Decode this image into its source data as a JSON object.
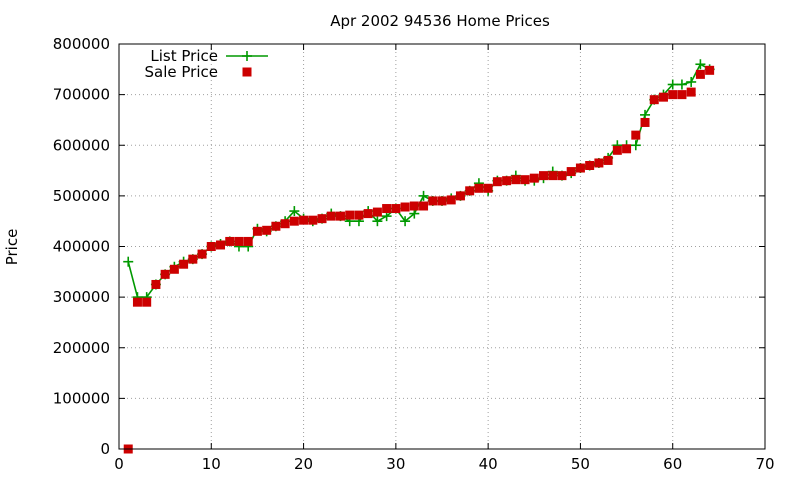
{
  "chart_data": {
    "type": "line",
    "title": "Apr 2002 94536 Home Prices",
    "xlabel": "",
    "ylabel": "Price",
    "xlim": [
      0,
      70
    ],
    "ylim": [
      0,
      800000
    ],
    "xticks": [
      "0",
      "10",
      "20",
      "30",
      "40",
      "50",
      "60",
      "70"
    ],
    "yticks": [
      "0",
      "100000",
      "200000",
      "300000",
      "400000",
      "500000",
      "600000",
      "700000",
      "800000"
    ],
    "grid": true,
    "legend_position": "top-left",
    "series": [
      {
        "name": "List Price",
        "style": "linespoints",
        "marker": "plus",
        "color": "#009900",
        "x": [
          1,
          2,
          3,
          4,
          5,
          6,
          7,
          8,
          9,
          10,
          11,
          12,
          13,
          14,
          15,
          16,
          17,
          18,
          19,
          20,
          21,
          22,
          23,
          24,
          25,
          26,
          27,
          28,
          29,
          30,
          31,
          32,
          33,
          34,
          35,
          36,
          37,
          38,
          39,
          40,
          41,
          42,
          43,
          44,
          45,
          46,
          47,
          48,
          49,
          50,
          51,
          52,
          53,
          54,
          55,
          56,
          57,
          58,
          59,
          60,
          61,
          62,
          63,
          64
        ],
        "y": [
          370000,
          300000,
          300000,
          325000,
          345000,
          360000,
          370000,
          375000,
          385000,
          400000,
          405000,
          410000,
          400000,
          400000,
          435000,
          430000,
          440000,
          450000,
          470000,
          455000,
          450000,
          455000,
          465000,
          460000,
          450000,
          450000,
          470000,
          450000,
          460000,
          475000,
          450000,
          465000,
          500000,
          490000,
          490000,
          495000,
          500000,
          510000,
          525000,
          510000,
          530000,
          530000,
          540000,
          530000,
          530000,
          535000,
          548000,
          540000,
          545000,
          555000,
          560000,
          565000,
          575000,
          600000,
          600000,
          600000,
          660000,
          690000,
          700000,
          720000,
          720000,
          725000,
          760000,
          750000
        ]
      },
      {
        "name": "Sale Price",
        "style": "points",
        "marker": "square",
        "color": "#cc0000",
        "x": [
          1,
          2,
          3,
          4,
          5,
          6,
          7,
          8,
          9,
          10,
          11,
          12,
          13,
          14,
          15,
          16,
          17,
          18,
          19,
          20,
          21,
          22,
          23,
          24,
          25,
          26,
          27,
          28,
          29,
          30,
          31,
          32,
          33,
          34,
          35,
          36,
          37,
          38,
          39,
          40,
          41,
          42,
          43,
          44,
          45,
          46,
          47,
          48,
          49,
          50,
          51,
          52,
          53,
          54,
          55,
          56,
          57,
          58,
          59,
          60,
          61,
          62,
          63,
          64
        ],
        "y": [
          0,
          290000,
          290000,
          325000,
          345000,
          355000,
          365000,
          375000,
          385000,
          400000,
          403000,
          410000,
          410000,
          410000,
          430000,
          432000,
          440000,
          445000,
          450000,
          452000,
          452000,
          455000,
          460000,
          460000,
          462000,
          462000,
          465000,
          468000,
          475000,
          475000,
          478000,
          480000,
          480000,
          490000,
          490000,
          492000,
          500000,
          510000,
          515000,
          515000,
          528000,
          530000,
          532000,
          532000,
          535000,
          540000,
          540000,
          540000,
          548000,
          555000,
          560000,
          565000,
          570000,
          590000,
          593000,
          620000,
          645000,
          690000,
          695000,
          700000,
          700000,
          705000,
          740000,
          748000
        ]
      }
    ]
  }
}
